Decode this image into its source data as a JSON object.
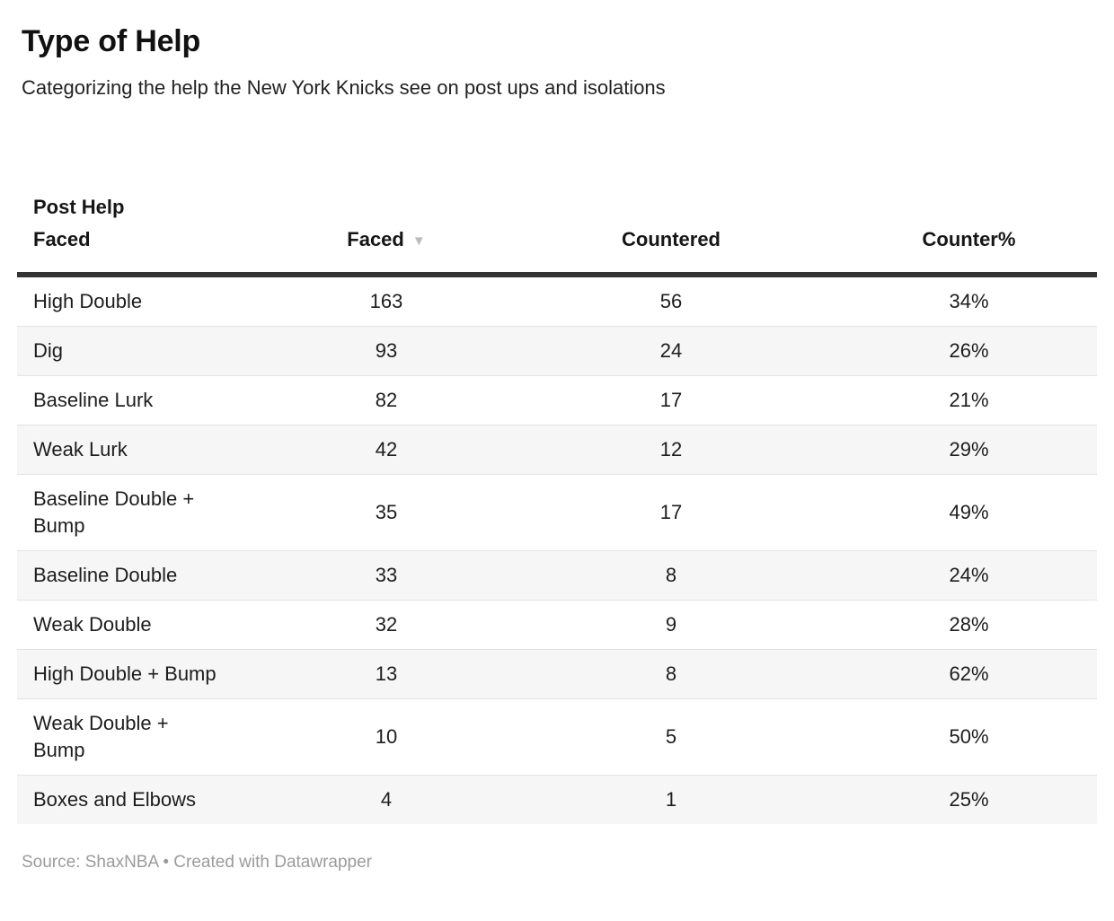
{
  "page": {
    "title": "Type of Help",
    "subtitle": "Categorizing the help the New York Knicks see on post ups and isolations",
    "footer": "Source: ShaxNBA • Created with Datawrapper"
  },
  "table": {
    "columns": [
      {
        "label": "Post Help\nFaced",
        "align": "left"
      },
      {
        "label": "Faced",
        "align": "center",
        "sorted": "descending",
        "sort_icon": "▼"
      },
      {
        "label": "Countered",
        "align": "center"
      },
      {
        "label": "Counter%",
        "align": "center"
      }
    ]
  },
  "chart_data": {
    "type": "table",
    "title": "Type of Help",
    "subtitle": "Categorizing the help the New York Knicks see on post ups and isolations",
    "columns": [
      "Post Help Faced",
      "Faced",
      "Countered",
      "Counter%"
    ],
    "sorted_by": "Faced",
    "sort_direction": "descending",
    "rows": [
      [
        "High Double",
        163,
        56,
        "34%"
      ],
      [
        "Dig",
        93,
        24,
        "26%"
      ],
      [
        "Baseline Lurk",
        82,
        17,
        "21%"
      ],
      [
        "Weak Lurk",
        42,
        12,
        "29%"
      ],
      [
        "Baseline Double + Bump",
        35,
        17,
        "49%"
      ],
      [
        "Baseline Double",
        33,
        8,
        "24%"
      ],
      [
        "Weak Double",
        32,
        9,
        "28%"
      ],
      [
        "High Double + Bump",
        13,
        8,
        "62%"
      ],
      [
        "Weak Double + Bump",
        10,
        5,
        "50%"
      ],
      [
        "Boxes and Elbows",
        4,
        1,
        "25%"
      ]
    ],
    "source": "ShaxNBA",
    "attribution": "Created with Datawrapper",
    "layout_hints": {
      "zebra_striping": true,
      "header_rule": true
    }
  },
  "colors": {
    "background": "#ffffff",
    "text": "#1d1d1d",
    "header_rule": "#333333",
    "zebra_row": "#f6f6f6",
    "row_divider": "#e3e3e3",
    "sort_arrow": "#bcbcbc",
    "footer_text": "#9b9b9b"
  }
}
